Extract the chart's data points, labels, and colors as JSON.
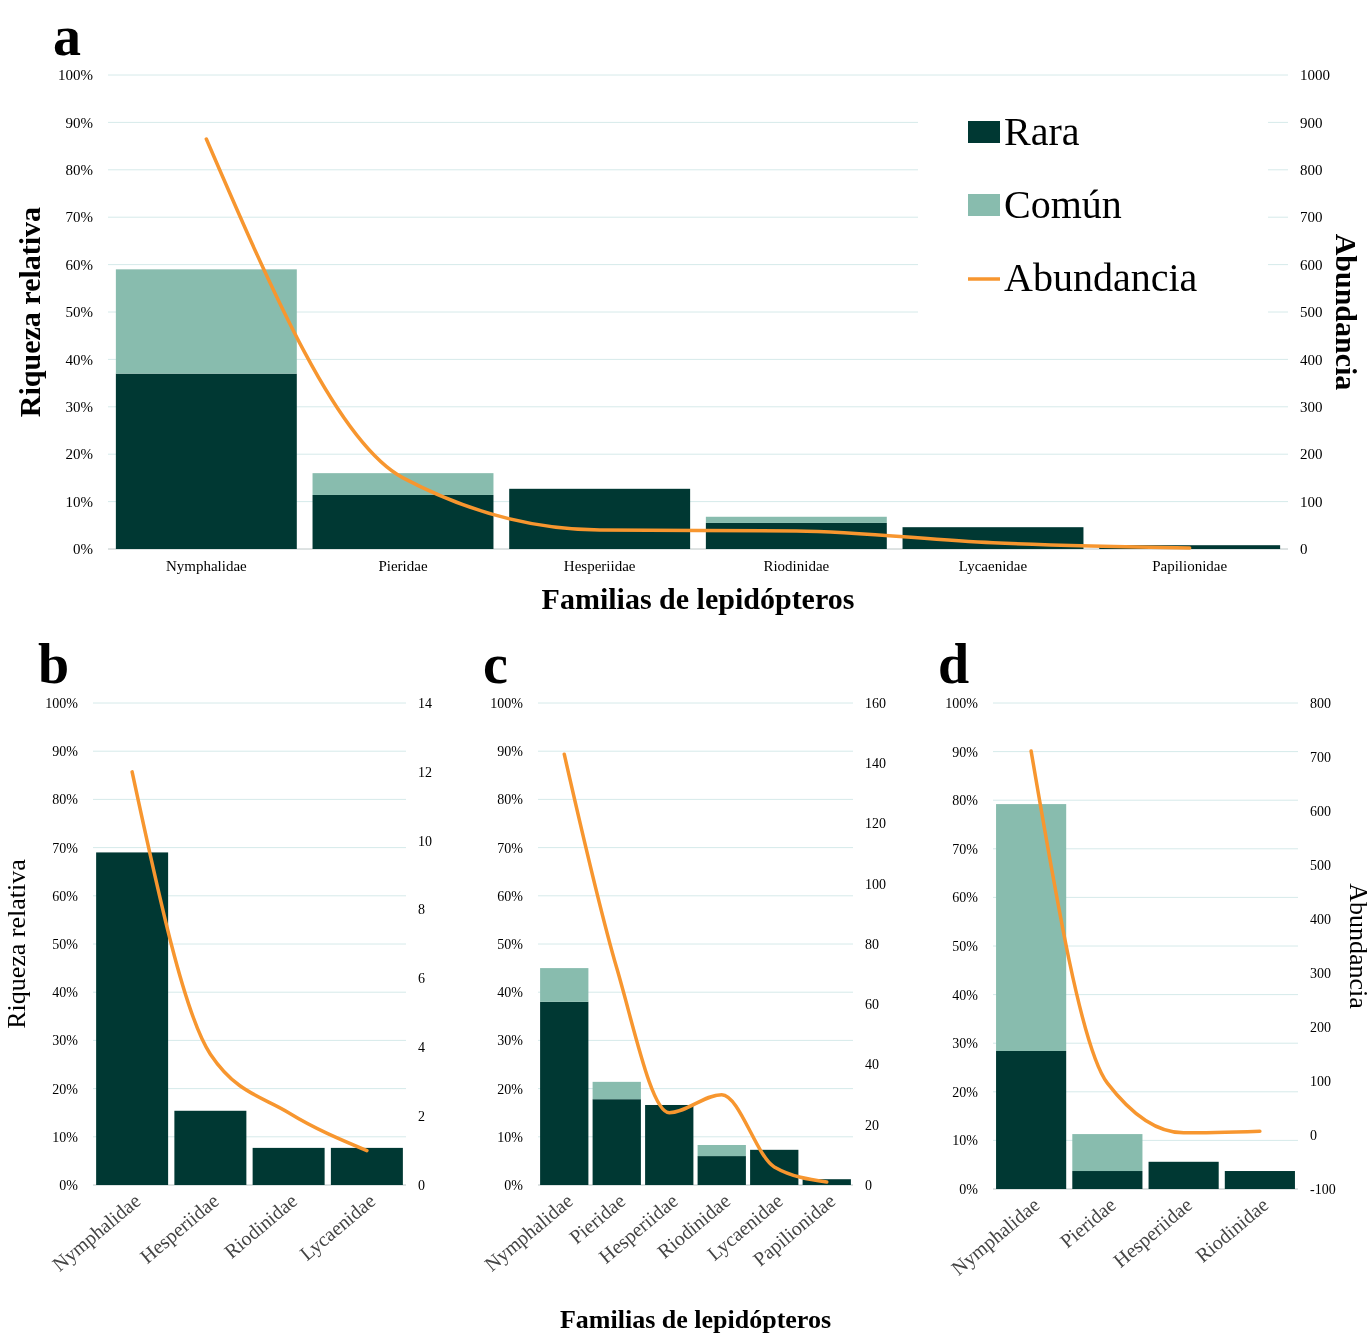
{
  "chart_data": [
    {
      "type": "bar",
      "title": "a",
      "xlabel": "Familias de lepidópteros",
      "ylabel": "Riqueza relativa",
      "y2label": "Abundancia",
      "categories": [
        "Nymphalidae",
        "Pieridae",
        "Hesperiidae",
        "Riodinidae",
        "Lycaenidae",
        "Papilionidae"
      ],
      "stacked": true,
      "grid": "y",
      "legend": "top right",
      "ylim": [
        0,
        100
      ],
      "yticks": [
        {
          "value": 0,
          "label": "0%"
        },
        {
          "value": 10,
          "label": "10%"
        },
        {
          "value": 20,
          "label": "20%"
        },
        {
          "value": 30,
          "label": "30%"
        },
        {
          "value": 40,
          "label": "40%"
        },
        {
          "value": 50,
          "label": "50%"
        },
        {
          "value": 60,
          "label": "60%"
        },
        {
          "value": 70,
          "label": "70%"
        },
        {
          "value": 80,
          "label": "80%"
        },
        {
          "value": 90,
          "label": "90%"
        },
        {
          "value": 100,
          "label": "100%"
        }
      ],
      "y2lim": [
        0,
        1000
      ],
      "y2ticks": [
        0,
        100,
        200,
        300,
        400,
        500,
        600,
        700,
        800,
        900,
        1000
      ],
      "series": [
        {
          "name": "Rara",
          "color": "#003833",
          "values": [
            37,
            11.4,
            12.7,
            5.5,
            4.6,
            0.8
          ]
        },
        {
          "name": "Común",
          "color": "#88bcae",
          "values": [
            22,
            4.6,
            0,
            1.3,
            0,
            0
          ]
        },
        {
          "name": "Abundancia",
          "type": "line",
          "axis": "y2",
          "color": "#f7962f",
          "values": [
            865,
            150,
            40,
            38,
            13,
            2
          ]
        }
      ]
    },
    {
      "type": "bar",
      "title": "b",
      "ylabel": "Riqueza relativa",
      "categories": [
        "Nymphalidae",
        "Hesperiidae",
        "Riodinidae",
        "Lycaenidae"
      ],
      "stacked": true,
      "grid": "y",
      "legend": false,
      "ylim": [
        0,
        100
      ],
      "yticks": [
        {
          "value": 0,
          "label": "0%"
        },
        {
          "value": 10,
          "label": "10%"
        },
        {
          "value": 20,
          "label": "20%"
        },
        {
          "value": 30,
          "label": "30%"
        },
        {
          "value": 40,
          "label": "40%"
        },
        {
          "value": 50,
          "label": "50%"
        },
        {
          "value": 60,
          "label": "60%"
        },
        {
          "value": 70,
          "label": "70%"
        },
        {
          "value": 80,
          "label": "80%"
        },
        {
          "value": 90,
          "label": "90%"
        },
        {
          "value": 100,
          "label": "100%"
        }
      ],
      "y2lim": [
        0,
        14
      ],
      "y2ticks": [
        0,
        2,
        4,
        6,
        8,
        10,
        12,
        14
      ],
      "series": [
        {
          "color": "#003833",
          "values": [
            69,
            15.4,
            7.7,
            7.7
          ]
        },
        {
          "type": "line",
          "axis": "y2",
          "color": "#f7962f",
          "values": [
            12,
            3.8,
            2.1,
            1
          ]
        }
      ]
    },
    {
      "type": "bar",
      "title": "c",
      "xlabel": "Familias de lepidópteros",
      "categories": [
        "Nymphalidae",
        "Pieridae",
        "Hesperiidae",
        "Riodinidae",
        "Lycaenidae",
        "Papilionidae"
      ],
      "stacked": true,
      "grid": "y",
      "legend": false,
      "ylim": [
        0,
        100
      ],
      "yticks": [
        {
          "value": 0,
          "label": "0%"
        },
        {
          "value": 10,
          "label": "10%"
        },
        {
          "value": 20,
          "label": "20%"
        },
        {
          "value": 30,
          "label": "30%"
        },
        {
          "value": 40,
          "label": "40%"
        },
        {
          "value": 50,
          "label": "50%"
        },
        {
          "value": 60,
          "label": "60%"
        },
        {
          "value": 70,
          "label": "70%"
        },
        {
          "value": 80,
          "label": "80%"
        },
        {
          "value": 90,
          "label": "90%"
        },
        {
          "value": 100,
          "label": "100%"
        }
      ],
      "y2lim": [
        0,
        160
      ],
      "y2ticks": [
        0,
        20,
        40,
        60,
        80,
        100,
        120,
        140,
        160
      ],
      "series": [
        {
          "color": "#003833",
          "values": [
            38,
            17.8,
            16.6,
            6,
            7.3,
            1.2
          ]
        },
        {
          "color": "#88bcae",
          "values": [
            7,
            3.6,
            0,
            2.3,
            0,
            0
          ]
        },
        {
          "type": "line",
          "axis": "y2",
          "color": "#f7962f",
          "values": [
            143,
            72,
            24,
            30,
            6,
            1
          ]
        }
      ]
    },
    {
      "type": "bar",
      "title": "d",
      "y2label": "Abundancia",
      "categories": [
        "Nymphalidae",
        "Pieridae",
        "Hesperiidae",
        "Riodinidae"
      ],
      "stacked": true,
      "grid": "y",
      "legend": false,
      "ylim": [
        0,
        100
      ],
      "yticks": [
        {
          "value": 0,
          "label": "0%"
        },
        {
          "value": 10,
          "label": "10%"
        },
        {
          "value": 20,
          "label": "20%"
        },
        {
          "value": 30,
          "label": "30%"
        },
        {
          "value": 40,
          "label": "40%"
        },
        {
          "value": 50,
          "label": "50%"
        },
        {
          "value": 60,
          "label": "60%"
        },
        {
          "value": 70,
          "label": "70%"
        },
        {
          "value": 80,
          "label": "80%"
        },
        {
          "value": 90,
          "label": "90%"
        },
        {
          "value": 100,
          "label": "100%"
        }
      ],
      "y2lim": [
        -100,
        800
      ],
      "y2ticks": [
        -100,
        0,
        100,
        200,
        300,
        400,
        500,
        600,
        700,
        800
      ],
      "series": [
        {
          "color": "#003833",
          "values": [
            28.4,
            3.7,
            5.6,
            3.7
          ]
        },
        {
          "color": "#88bcae",
          "values": [
            50.8,
            7.6,
            0,
            0
          ]
        },
        {
          "type": "line",
          "axis": "y2",
          "color": "#f7962f",
          "values": [
            711,
            96,
            4,
            7
          ]
        }
      ]
    }
  ]
}
